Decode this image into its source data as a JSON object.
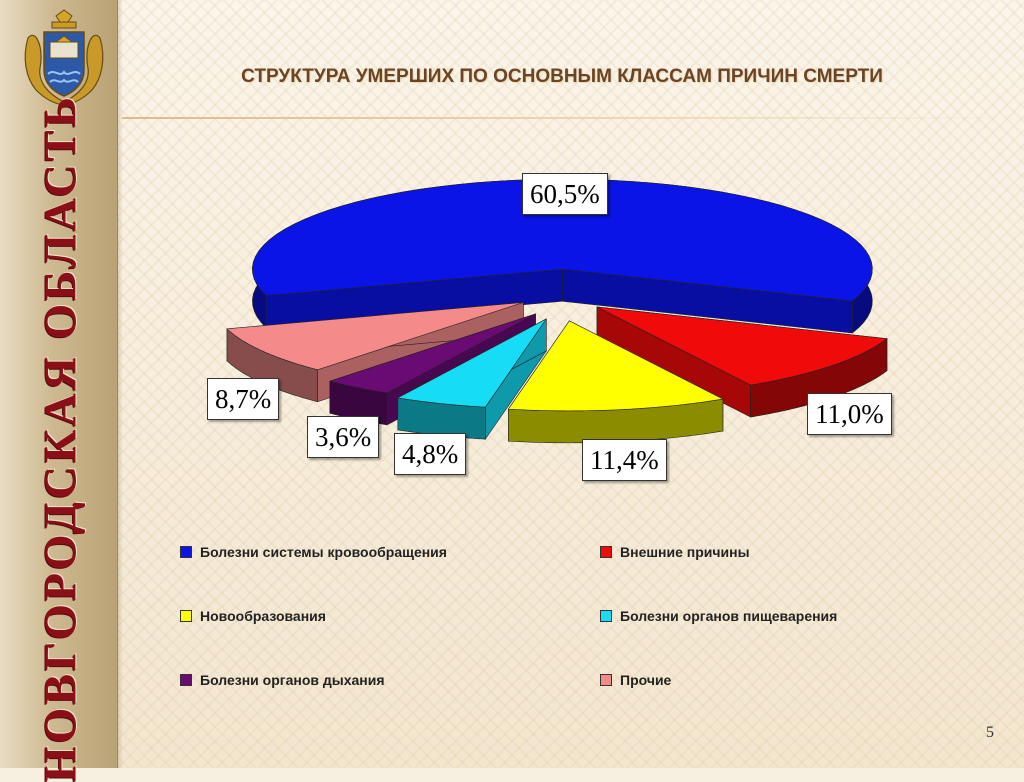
{
  "slide": {
    "title": "СТРУКТУРА УМЕРШИХ ПО ОСНОВНЫМ КЛАССАМ ПРИЧИН СМЕРТИ",
    "region_name": "НОВГОРОДСКАЯ ОБЛАСТЬ",
    "page_number": "5",
    "emblem_icon": "coat-of-arms-icon"
  },
  "chart_data": {
    "type": "pie",
    "title": "",
    "legend_position": "bottom",
    "slices": [
      {
        "name": "Болезни системы кровообращения",
        "value": 60.5,
        "label": "60,5%",
        "color": "#0a14e6"
      },
      {
        "name": "Внешние причины",
        "value": 11.0,
        "label": "11,0%",
        "color": "#f00a0a"
      },
      {
        "name": "Новообразования",
        "value": 11.4,
        "label": "11,4%",
        "color": "#ffff00"
      },
      {
        "name": "Болезни органов пищеварения",
        "value": 4.8,
        "label": "4,8%",
        "color": "#16dcf5"
      },
      {
        "name": "Болезни органов дыхания",
        "value": 3.6,
        "label": "3,6%",
        "color": "#6a0a73"
      },
      {
        "name": "Прочие",
        "value": 8.7,
        "label": "8,7%",
        "color": "#f58a8a"
      }
    ]
  }
}
